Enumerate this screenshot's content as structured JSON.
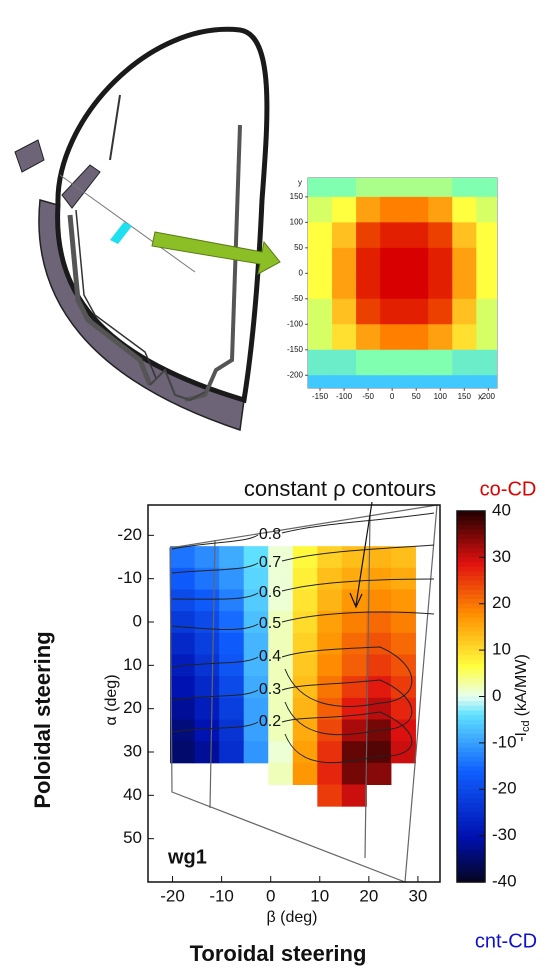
{
  "chart_data": [
    {
      "type": "heatmap",
      "x": [
        -150,
        -100,
        -50,
        0,
        50,
        100,
        150,
        200
      ],
      "y": [
        175,
        125,
        75,
        25,
        -25,
        -75,
        -125,
        -175,
        -225
      ],
      "z": [
        [
          0.45,
          0.45,
          0.5,
          0.5,
          0.5,
          0.5,
          0.45,
          0.45
        ],
        [
          0.55,
          0.6,
          0.75,
          0.8,
          0.8,
          0.75,
          0.6,
          0.55
        ],
        [
          0.6,
          0.7,
          0.9,
          0.95,
          0.95,
          0.9,
          0.7,
          0.6
        ],
        [
          0.6,
          0.75,
          0.95,
          1,
          1,
          0.95,
          0.75,
          0.6
        ],
        [
          0.6,
          0.75,
          0.95,
          1,
          1,
          0.95,
          0.75,
          0.6
        ],
        [
          0.55,
          0.7,
          0.9,
          0.95,
          0.95,
          0.9,
          0.7,
          0.55
        ],
        [
          0.55,
          0.65,
          0.75,
          0.8,
          0.8,
          0.75,
          0.65,
          0.55
        ],
        [
          0.4,
          0.4,
          0.45,
          0.45,
          0.45,
          0.45,
          0.4,
          0.4
        ],
        [
          0.3,
          0.3,
          0.3,
          0.3,
          0.3,
          0.3,
          0.3,
          0.3
        ]
      ],
      "clim": [
        0,
        1
      ],
      "xlim": [
        -175,
        218
      ],
      "ylim": [
        -225,
        187
      ],
      "xticks": [
        -150,
        -100,
        -50,
        0,
        50,
        100,
        150,
        200
      ],
      "yticks": [
        150,
        100,
        50,
        0,
        -50,
        -100,
        -150,
        -200
      ],
      "xlabel": "x",
      "ylabel": "y"
    },
    {
      "type": "heatmap",
      "annotation": "constant ρ contours",
      "contour_levels": [
        0.8,
        0.7,
        0.6,
        0.5,
        0.4,
        0.3,
        0.2
      ],
      "panel_label": "wg1",
      "ylabel": "Poloidal steering",
      "ylabel2": "α (deg)",
      "xlabel": "Toroidal steering",
      "xlabel2": "β (deg)",
      "x": [
        -18,
        -13,
        -8,
        -3,
        2,
        7,
        12,
        17,
        22,
        27
      ],
      "y": [
        -15,
        -10,
        -5,
        0,
        5,
        10,
        15,
        20,
        25,
        30,
        35,
        40
      ],
      "z": [
        [
          -14,
          -12,
          -9,
          -4,
          1,
          7,
          11,
          13,
          14,
          13
        ],
        [
          -17,
          -14,
          -11,
          -5,
          1,
          8,
          13,
          15,
          16,
          15
        ],
        [
          -20,
          -17,
          -13,
          -6,
          1,
          9,
          14,
          17,
          18,
          17
        ],
        [
          -23,
          -20,
          -15,
          -7,
          2,
          10,
          16,
          19,
          21,
          19
        ],
        [
          -26,
          -22,
          -17,
          -8,
          2,
          11,
          17,
          21,
          23,
          21
        ],
        [
          -28,
          -24,
          -18,
          -8,
          2,
          12,
          18,
          22,
          25,
          23
        ],
        [
          -30,
          -26,
          -20,
          -9,
          2,
          13,
          20,
          25,
          28,
          25
        ],
        [
          -32,
          -28,
          -22,
          -10,
          2,
          14,
          22,
          28,
          31,
          27
        ],
        [
          -34,
          -30,
          -24,
          -10,
          2,
          15,
          24,
          32,
          35,
          29
        ],
        [
          -35,
          -32,
          -25,
          -11,
          1,
          16,
          26,
          36,
          37,
          30
        ],
        [
          null,
          null,
          null,
          null,
          2,
          17,
          27,
          35,
          34,
          null
        ],
        [
          null,
          null,
          null,
          null,
          null,
          null,
          25,
          30,
          null,
          null
        ]
      ],
      "xlim": [
        -25,
        34.5
      ],
      "ylim": [
        -27,
        60
      ],
      "yaxis_inverted": true,
      "xticks": [
        -20,
        -10,
        0,
        10,
        20,
        30
      ],
      "yticks": [
        -20,
        -10,
        0,
        10,
        20,
        30,
        40,
        50
      ],
      "clim": [
        -40,
        40
      ],
      "cticks": [
        40,
        30,
        20,
        10,
        0,
        -10,
        -20,
        -30,
        -40
      ],
      "colorbar_label": {
        "main": "-I",
        "sub": "cd",
        "unit": "(kA/MW)"
      },
      "colorbar_top": "co-CD",
      "colorbar_bottom": "cnt-CD"
    }
  ]
}
